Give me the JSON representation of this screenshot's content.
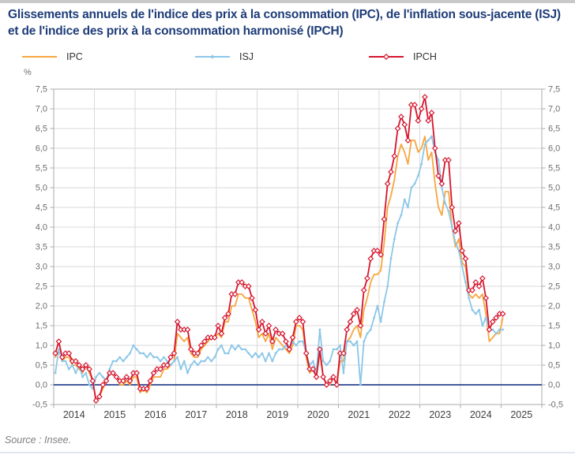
{
  "title": "Glissements annuels de l'indice des prix à la consommation (IPC), de l'inflation sous-jacente (ISJ) et de l'indice des prix à la consommation harmonisé (IPCH)",
  "source": "Source : Insee.",
  "legend": {
    "items": [
      {
        "label": "IPC",
        "color": "#f7a640",
        "marker": "none"
      },
      {
        "label": "ISJ",
        "color": "#8cc7e8",
        "marker": "dot"
      },
      {
        "label": "IPCH",
        "color": "#d6142d",
        "marker": "open-diamond"
      }
    ]
  },
  "chart_data": {
    "type": "line",
    "title": "Glissements annuels de l'IPC, de l'ISJ et de l'IPCH",
    "unit_label": "%",
    "x_start": "2014-01",
    "x_end": "2025-01",
    "years": [
      "2014",
      "2015",
      "2016",
      "2017",
      "2018",
      "2019",
      "2020",
      "2021",
      "2022",
      "2023",
      "2024",
      "2025"
    ],
    "ylim": [
      -0.5,
      7.5
    ],
    "ytick_step": 0.5,
    "grid": true,
    "legend_position": "top",
    "colors": {
      "zero_line": "#2a4390",
      "grid": "#d9d9d9",
      "plot_border": "#ababab",
      "tick_label": "#6e6e6e",
      "year_label": "#3f3f3f"
    },
    "series": [
      {
        "name": "IPC",
        "color": "#f7a640",
        "marker": "none",
        "values": [
          0.7,
          0.9,
          0.6,
          0.7,
          0.7,
          0.5,
          0.5,
          0.4,
          0.3,
          0.5,
          0.3,
          0.1,
          -0.4,
          -0.3,
          -0.1,
          0.1,
          0.3,
          0.3,
          0.2,
          0.0,
          0.0,
          0.1,
          0.0,
          0.2,
          0.2,
          -0.2,
          -0.1,
          -0.2,
          0.0,
          0.2,
          0.2,
          0.2,
          0.4,
          0.4,
          0.5,
          0.6,
          1.3,
          1.2,
          1.1,
          1.2,
          0.8,
          0.7,
          0.7,
          0.9,
          1.0,
          1.1,
          1.2,
          1.2,
          1.3,
          1.2,
          1.6,
          1.6,
          2.0,
          2.0,
          2.3,
          2.3,
          2.2,
          2.2,
          1.9,
          1.6,
          1.2,
          1.3,
          1.1,
          1.3,
          0.9,
          1.2,
          1.1,
          1.0,
          0.9,
          0.8,
          1.0,
          1.5,
          1.5,
          1.4,
          0.7,
          0.3,
          0.4,
          0.2,
          0.8,
          0.2,
          0.0,
          0.0,
          0.2,
          0.0,
          0.6,
          0.6,
          1.1,
          1.2,
          1.4,
          1.5,
          1.2,
          1.9,
          2.2,
          2.6,
          2.8,
          2.8,
          2.9,
          3.6,
          4.5,
          4.8,
          5.2,
          5.8,
          6.1,
          5.9,
          5.6,
          6.2,
          6.2,
          5.9,
          6.0,
          6.3,
          5.7,
          5.9,
          5.1,
          4.5,
          4.3,
          4.9,
          4.9,
          4.0,
          3.5,
          3.7,
          3.1,
          3.0,
          2.3,
          2.2,
          2.3,
          2.2,
          2.3,
          1.8,
          1.1,
          1.2,
          1.3,
          1.3,
          1.7
        ]
      },
      {
        "name": "ISJ",
        "color": "#8cc7e8",
        "marker": "dot",
        "values": [
          0.3,
          0.9,
          0.6,
          0.6,
          0.4,
          0.5,
          0.3,
          0.5,
          0.2,
          0.3,
          0.0,
          -0.1,
          0.2,
          0.3,
          0.2,
          0.1,
          0.4,
          0.6,
          0.6,
          0.7,
          0.6,
          0.7,
          0.8,
          1.0,
          0.9,
          0.8,
          0.8,
          0.7,
          0.8,
          0.7,
          0.7,
          0.6,
          0.7,
          0.6,
          0.5,
          0.6,
          0.7,
          0.4,
          0.6,
          0.3,
          0.5,
          0.6,
          0.5,
          0.6,
          0.6,
          0.7,
          0.6,
          0.7,
          0.9,
          1.0,
          0.8,
          0.8,
          1.0,
          0.9,
          1.0,
          0.9,
          0.9,
          0.8,
          0.7,
          0.8,
          0.7,
          0.8,
          0.6,
          0.8,
          0.6,
          0.8,
          0.9,
          0.9,
          1.0,
          0.9,
          1.1,
          1.0,
          1.1,
          1.1,
          0.8,
          0.5,
          0.6,
          0.3,
          1.4,
          0.6,
          0.5,
          0.6,
          0.9,
          0.9,
          1.0,
          0.3,
          1.1,
          1.1,
          1.0,
          1.1,
          0.0,
          1.1,
          1.3,
          1.4,
          1.7,
          2.0,
          1.6,
          2.1,
          2.5,
          3.2,
          3.7,
          4.1,
          4.3,
          4.7,
          4.5,
          5.0,
          5.1,
          5.3,
          5.6,
          6.1,
          6.2,
          6.3,
          5.9,
          5.7,
          5.0,
          4.6,
          4.4,
          4.0,
          3.6,
          3.4,
          3.0,
          2.6,
          2.2,
          1.9,
          1.8,
          1.9,
          1.5,
          1.7,
          1.4,
          1.4,
          1.3,
          1.4,
          1.4
        ]
      },
      {
        "name": "IPCH",
        "color": "#d6142d",
        "marker": "open-diamond",
        "values": [
          0.8,
          1.1,
          0.7,
          0.8,
          0.8,
          0.6,
          0.6,
          0.5,
          0.4,
          0.5,
          0.4,
          0.1,
          -0.4,
          -0.3,
          0.0,
          0.1,
          0.3,
          0.3,
          0.2,
          0.1,
          0.1,
          0.2,
          0.1,
          0.3,
          0.3,
          -0.1,
          -0.1,
          -0.1,
          0.1,
          0.3,
          0.4,
          0.4,
          0.5,
          0.5,
          0.7,
          0.8,
          1.6,
          1.4,
          1.4,
          1.4,
          0.9,
          0.8,
          0.8,
          1.0,
          1.1,
          1.2,
          1.2,
          1.2,
          1.5,
          1.3,
          1.7,
          1.8,
          2.3,
          2.3,
          2.6,
          2.6,
          2.5,
          2.5,
          2.2,
          1.9,
          1.4,
          1.6,
          1.3,
          1.5,
          1.1,
          1.4,
          1.3,
          1.3,
          1.1,
          0.9,
          1.2,
          1.6,
          1.7,
          1.6,
          0.8,
          0.4,
          0.4,
          0.2,
          0.9,
          0.2,
          0.0,
          0.1,
          0.2,
          0.0,
          0.8,
          0.8,
          1.4,
          1.6,
          1.8,
          1.9,
          1.5,
          2.4,
          2.7,
          3.2,
          3.4,
          3.4,
          3.3,
          4.2,
          5.1,
          5.4,
          5.8,
          6.5,
          6.8,
          6.6,
          6.2,
          7.1,
          7.1,
          6.7,
          7.0,
          7.3,
          6.7,
          6.9,
          6.0,
          5.3,
          5.1,
          5.7,
          5.7,
          4.5,
          3.9,
          4.1,
          3.4,
          3.2,
          2.4,
          2.4,
          2.6,
          2.5,
          2.7,
          2.2,
          1.4,
          1.6,
          1.7,
          1.8,
          1.8
        ]
      }
    ]
  }
}
